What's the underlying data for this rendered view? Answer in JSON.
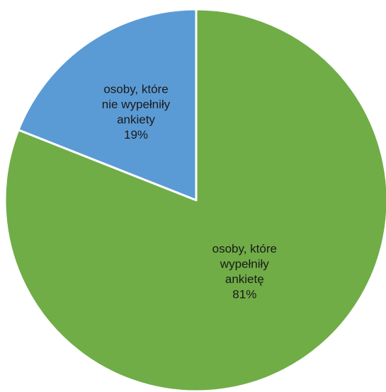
{
  "chart_data": {
    "type": "pie",
    "title": "",
    "slices": [
      {
        "label_lines": [
          "osoby, które",
          "nie wypełniły",
          "ankiety"
        ],
        "percent_label": "19%",
        "value": 19,
        "color": "#5b9bd5"
      },
      {
        "label_lines": [
          "osoby, które",
          "wypełniły",
          "ankietę"
        ],
        "percent_label": "81%",
        "value": 81,
        "color": "#70ad47"
      }
    ],
    "start_angle_deg": 0,
    "direction": "counterclockwise",
    "legend": "none",
    "data_labels": "inside"
  }
}
